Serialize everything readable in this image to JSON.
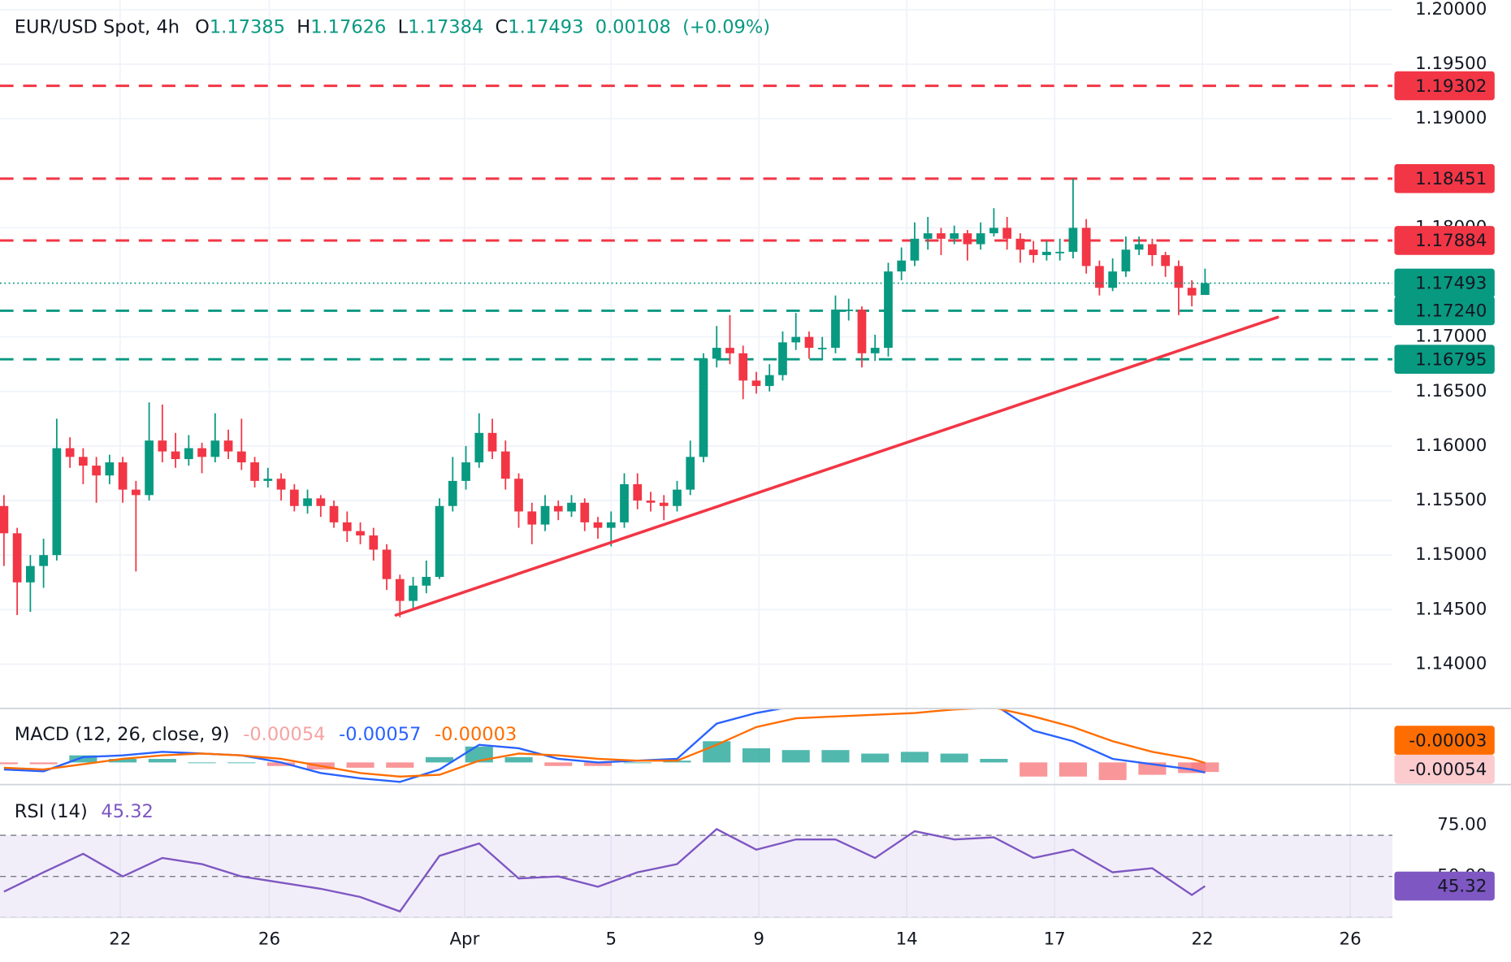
{
  "chart_data": [
    {
      "type": "candlestick",
      "title": "EUR/USD Spot, 4h",
      "ohlc_labels": [
        "O",
        "H",
        "L",
        "C"
      ],
      "open": [
        1.1545,
        1.152,
        1.1475,
        1.149,
        1.15,
        1.1598,
        1.159,
        1.1582,
        1.1573,
        1.1585,
        1.156,
        1.1555,
        1.1605,
        1.1595,
        1.1588,
        1.1598,
        1.159,
        1.1605,
        1.1595,
        1.1585,
        1.1568,
        1.157,
        1.156,
        1.1545,
        1.1552,
        1.1545,
        1.153,
        1.1522,
        1.1518,
        1.1505,
        1.1478,
        1.1458,
        1.1472,
        1.148,
        1.1545,
        1.1568,
        1.1585,
        1.1612,
        1.1595,
        1.157,
        1.154,
        1.1528,
        1.1545,
        1.154,
        1.1548,
        1.153,
        1.1525,
        1.153,
        1.1565,
        1.155,
        1.1548,
        1.1545,
        1.156,
        1.159,
        1.168,
        1.169,
        1.1685,
        1.166,
        1.1655,
        1.1665,
        1.1695,
        1.17,
        1.169,
        1.169,
        1.1725,
        1.1725,
        1.1685,
        1.169,
        1.176,
        1.177,
        1.179,
        1.1795,
        1.179,
        1.1795,
        1.1785,
        1.1795,
        1.18,
        1.179,
        1.178,
        1.1775,
        1.1778,
        1.1778,
        1.18,
        1.1765,
        1.1745,
        1.176,
        1.178,
        1.1785,
        1.1775,
        1.1765,
        1.1745,
        1.17385
      ],
      "high": [
        1.1555,
        1.1525,
        1.15,
        1.1515,
        1.1625,
        1.1608,
        1.1598,
        1.159,
        1.1592,
        1.159,
        1.1568,
        1.164,
        1.1638,
        1.1612,
        1.161,
        1.1603,
        1.163,
        1.1615,
        1.1625,
        1.159,
        1.158,
        1.1575,
        1.1565,
        1.156,
        1.1555,
        1.155,
        1.154,
        1.153,
        1.1525,
        1.151,
        1.1482,
        1.148,
        1.1495,
        1.1552,
        1.159,
        1.16,
        1.163,
        1.1625,
        1.1605,
        1.1575,
        1.1548,
        1.1555,
        1.155,
        1.1555,
        1.1552,
        1.1535,
        1.154,
        1.1575,
        1.1575,
        1.1558,
        1.1555,
        1.1568,
        1.1605,
        1.1685,
        1.171,
        1.172,
        1.1692,
        1.1668,
        1.1675,
        1.1705,
        1.1722,
        1.1705,
        1.17,
        1.1738,
        1.1735,
        1.1728,
        1.1702,
        1.1768,
        1.1782,
        1.1805,
        1.181,
        1.18,
        1.1802,
        1.1798,
        1.1805,
        1.1818,
        1.181,
        1.1795,
        1.1788,
        1.1788,
        1.179,
        1.1845,
        1.1808,
        1.177,
        1.1772,
        1.1792,
        1.1792,
        1.179,
        1.1778,
        1.177,
        1.1752,
        1.17626
      ],
      "low": [
        1.149,
        1.1445,
        1.1448,
        1.147,
        1.1495,
        1.158,
        1.1565,
        1.1548,
        1.1565,
        1.1548,
        1.1485,
        1.155,
        1.1585,
        1.158,
        1.1582,
        1.1575,
        1.1585,
        1.1588,
        1.1578,
        1.1562,
        1.1562,
        1.155,
        1.154,
        1.1538,
        1.1535,
        1.1525,
        1.1512,
        1.151,
        1.1495,
        1.1468,
        1.1443,
        1.145,
        1.1465,
        1.1478,
        1.154,
        1.156,
        1.158,
        1.1588,
        1.156,
        1.1525,
        1.151,
        1.1522,
        1.1532,
        1.1535,
        1.1522,
        1.1515,
        1.1508,
        1.1525,
        1.1542,
        1.154,
        1.1532,
        1.154,
        1.1555,
        1.1585,
        1.1672,
        1.1675,
        1.1643,
        1.1648,
        1.165,
        1.166,
        1.1688,
        1.168,
        1.168,
        1.1685,
        1.1715,
        1.1672,
        1.1678,
        1.1682,
        1.1752,
        1.1765,
        1.178,
        1.1775,
        1.1785,
        1.177,
        1.178,
        1.1792,
        1.178,
        1.1768,
        1.1768,
        1.177,
        1.177,
        1.1772,
        1.1758,
        1.1738,
        1.1742,
        1.1755,
        1.1775,
        1.1765,
        1.1755,
        1.172,
        1.1728,
        1.17384
      ],
      "close": [
        1.152,
        1.1475,
        1.149,
        1.15,
        1.1598,
        1.159,
        1.1582,
        1.1573,
        1.1585,
        1.156,
        1.1555,
        1.1605,
        1.1595,
        1.1588,
        1.1598,
        1.159,
        1.1605,
        1.1595,
        1.1585,
        1.1568,
        1.157,
        1.156,
        1.1545,
        1.1552,
        1.1545,
        1.153,
        1.1522,
        1.1518,
        1.1505,
        1.1478,
        1.1458,
        1.1472,
        1.148,
        1.1545,
        1.1568,
        1.1585,
        1.1612,
        1.1595,
        1.157,
        1.154,
        1.1528,
        1.1545,
        1.154,
        1.1548,
        1.153,
        1.1525,
        1.153,
        1.1565,
        1.155,
        1.1548,
        1.1545,
        1.156,
        1.159,
        1.168,
        1.169,
        1.1685,
        1.166,
        1.1655,
        1.1665,
        1.1695,
        1.17,
        1.169,
        1.169,
        1.1725,
        1.1725,
        1.1685,
        1.169,
        1.176,
        1.177,
        1.179,
        1.1795,
        1.179,
        1.1795,
        1.1785,
        1.1795,
        1.18,
        1.179,
        1.178,
        1.1775,
        1.1778,
        1.1778,
        1.18,
        1.1765,
        1.1745,
        1.176,
        1.178,
        1.1785,
        1.1775,
        1.1765,
        1.1745,
        1.1738,
        1.17493
      ],
      "change": 0.00108,
      "change_label": "(+0.09%)",
      "up_color": "#089981",
      "down_color": "#f23645",
      "xlim": [
        -0.3,
        105.2
      ],
      "xticks": [
        {
          "value": 8.8,
          "label": "22"
        },
        {
          "value": 20.1,
          "label": "26"
        },
        {
          "value": 34.9,
          "label": "Apr"
        },
        {
          "value": 46.0,
          "label": "5"
        },
        {
          "value": 57.2,
          "label": "9"
        },
        {
          "value": 68.4,
          "label": "14"
        },
        {
          "value": 79.6,
          "label": "17"
        },
        {
          "value": 90.8,
          "label": "22"
        },
        {
          "value": 102.0,
          "label": "26"
        }
      ],
      "ylim": [
        1.13594,
        1.20088
      ],
      "yticks": [
        {
          "value": 1.2,
          "label": "1.20000"
        },
        {
          "value": 1.195,
          "label": "1.19500"
        },
        {
          "value": 1.19,
          "label": "1.19000"
        },
        {
          "value": 1.18,
          "label": "1.18000"
        },
        {
          "value": 1.17,
          "label": "1.17000"
        },
        {
          "value": 1.165,
          "label": "1.16500"
        },
        {
          "value": 1.16,
          "label": "1.16000"
        },
        {
          "value": 1.155,
          "label": "1.15500"
        },
        {
          "value": 1.15,
          "label": "1.15000"
        },
        {
          "value": 1.145,
          "label": "1.14500"
        },
        {
          "value": 1.14,
          "label": "1.14000"
        }
      ],
      "grid": true,
      "levels": [
        {
          "value": 1.19302,
          "color": "#f23645"
        },
        {
          "value": 1.18451,
          "color": "#f23645"
        },
        {
          "value": 1.17884,
          "color": "#f23645"
        },
        {
          "value": 1.1724,
          "label": "1.17240",
          "color": "#089981"
        },
        {
          "value": 1.16795,
          "color": "#089981"
        }
      ],
      "trendline": {
        "x": [
          29.7,
          96.5
        ],
        "y": [
          1.1445,
          1.1718
        ],
        "color": "#f23645"
      }
    },
    {
      "type": "macd",
      "title": "MACD (12, 26, close, 9)",
      "x": [
        0,
        3,
        6,
        9,
        12,
        15,
        18,
        21,
        24,
        27,
        30,
        33,
        36,
        39,
        42,
        45,
        48,
        51,
        54,
        57,
        60,
        63,
        66,
        69,
        72,
        75,
        78,
        81,
        84,
        87,
        90,
        91
      ],
      "histogram": {
        "values": [
          -0.0001,
          -0.0001,
          0.0004,
          0.0002,
          0.0002,
          0,
          0,
          -0.0002,
          -0.0004,
          -0.0003,
          -0.0003,
          0.0003,
          0.0009,
          0.0003,
          -0.0002,
          -0.0002,
          0,
          0.0001,
          0.0012,
          0.0008,
          0.0007,
          0.0007,
          0.0005,
          0.0006,
          0.0005,
          0.0002,
          -0.0008,
          -0.0008,
          -0.001,
          -0.0007,
          -0.0006,
          -0.00054
        ],
        "up_color": "#26a69a",
        "down_color": "#f77c80"
      },
      "macd": {
        "values": [
          -0.0004,
          -0.0005,
          0.0003,
          0.0004,
          0.0006,
          0.0005,
          0.0004,
          0,
          -0.0006,
          -0.0009,
          -0.0011,
          -0.0004,
          0.001,
          0.0008,
          0.0002,
          0,
          0.0001,
          0.0002,
          0.0022,
          0.0028,
          0.0032,
          0.0033,
          0.0032,
          0.0034,
          0.0035,
          0.0033,
          0.0018,
          0.0012,
          0.0002,
          -0.0001,
          -0.0004,
          -0.00057
        ],
        "color": "#2962ff"
      },
      "signal": {
        "values": [
          -0.0003,
          -0.0004,
          -0.0001,
          0.0002,
          0.0004,
          0.0005,
          0.0004,
          0.0002,
          -0.0002,
          -0.0006,
          -0.0008,
          -0.0007,
          0.0001,
          0.0005,
          0.0004,
          0.0002,
          0.0001,
          0.0001,
          0.001,
          0.002,
          0.0025,
          0.0026,
          0.0027,
          0.0028,
          0.003,
          0.0031,
          0.0026,
          0.002,
          0.0012,
          0.0006,
          0.0002,
          -3e-05
        ],
        "color": "#ff6d00"
      },
      "ylim": [
        -0.0012,
        0.003
      ]
    },
    {
      "type": "rsi",
      "title": "RSI (14)",
      "x": [
        0,
        3,
        6,
        9,
        12,
        15,
        18,
        21,
        24,
        27,
        30,
        33,
        36,
        39,
        42,
        45,
        48,
        51,
        54,
        57,
        60,
        63,
        66,
        69,
        72,
        75,
        78,
        81,
        84,
        87,
        90,
        91
      ],
      "values": [
        42.6,
        52,
        61,
        50,
        59,
        56,
        50,
        47,
        44,
        40,
        33,
        60,
        66,
        49,
        50,
        45,
        52,
        56,
        73,
        63,
        68,
        68,
        59,
        72,
        68,
        69,
        59,
        63,
        52,
        54,
        41,
        45.32
      ],
      "color": "#7e57c2",
      "ylim": [
        30,
        93.7
      ],
      "yticks": [
        {
          "value": 75,
          "label": "75.00"
        },
        {
          "value": 50,
          "label": "50.00"
        }
      ],
      "band": [
        30,
        70
      ],
      "midline": 50
    }
  ]
}
